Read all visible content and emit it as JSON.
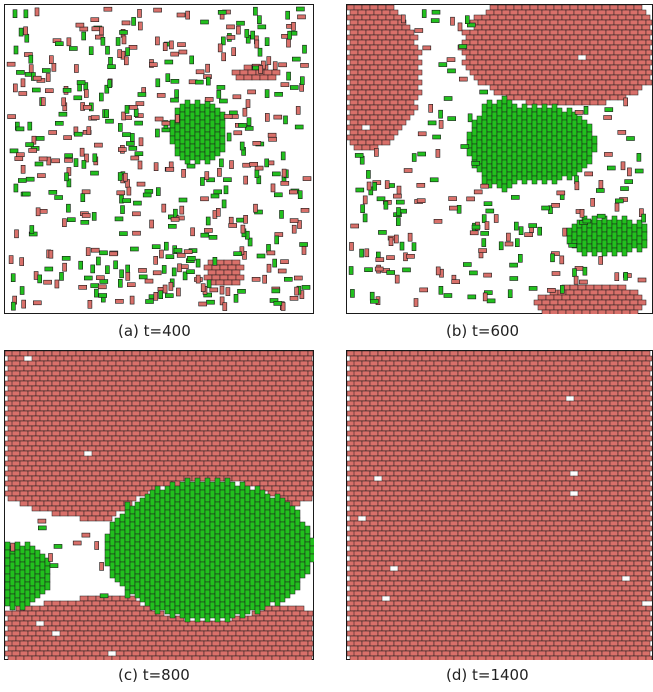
{
  "colors": {
    "red_brick": "#d9706a",
    "green_brick": "#22c01e",
    "outline": "#1a1a1a",
    "background": "#ffffff"
  },
  "panels": [
    {
      "label": "(a) t=400",
      "coverage": "sparse red and green bricks, one green cluster center, small red clusters"
    },
    {
      "label": "(b) t=600",
      "coverage": "red regions top-left and top-right, green central cluster, green cluster right"
    },
    {
      "label": "(c) t=800",
      "coverage": "red covers most area, large green region lower center, green left edge"
    },
    {
      "label": "(d) t=1400",
      "coverage": "red covers nearly entire panel"
    }
  ]
}
